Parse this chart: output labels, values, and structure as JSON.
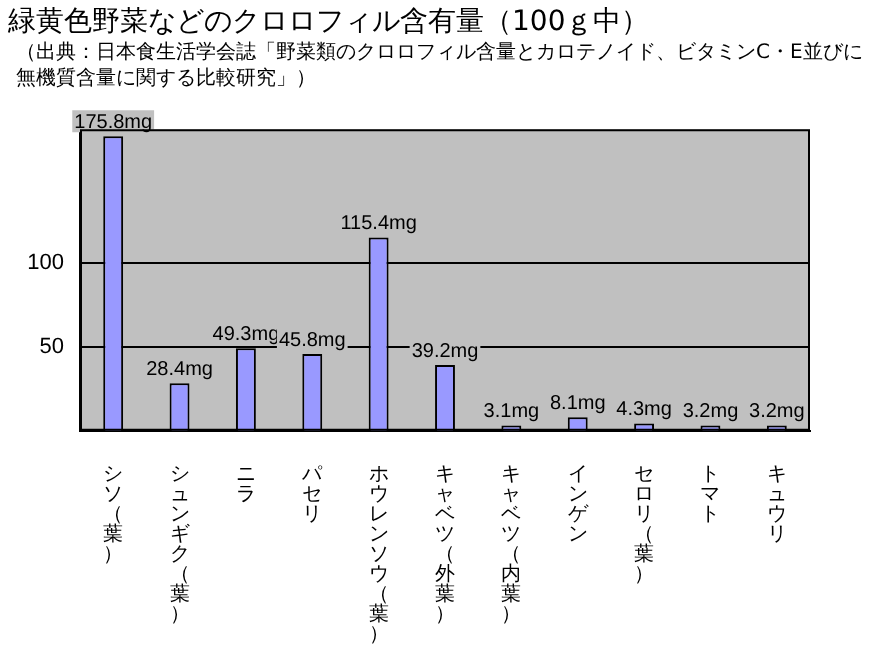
{
  "chart_data": {
    "type": "bar",
    "title": "緑黄色野菜などのクロロフィル含有量（100ｇ中）",
    "subtitle": "（出典：日本食生活学会誌「野菜類のクロロフィル含量とカロテノイド、ビタミンC・E並びに無機質含量に関する比較研究」）",
    "categories": [
      "シソ（葉）",
      "シュンギク（葉）",
      "ニラ",
      "パセリ",
      "ホウレンソウ（葉）",
      "キャベツ（外葉）",
      "キャベツ（内葉）",
      "インゲン",
      "セロリ（葉）",
      "トマト",
      "キュウリ"
    ],
    "values": [
      175.8,
      28.4,
      49.3,
      45.8,
      115.4,
      39.2,
      3.1,
      8.1,
      4.3,
      3.2,
      3.2
    ],
    "value_labels": [
      "175.8mg",
      "28.4mg",
      "49.3mg",
      "45.8mg",
      "115.4mg",
      "39.2mg",
      "3.1mg",
      "8.1mg",
      "4.3mg",
      "3.2mg",
      "3.2mg"
    ],
    "color": "#9999ff",
    "ylim": [
      0,
      180
    ],
    "yticks": [
      50,
      100
    ],
    "grid": "y",
    "legend": false
  }
}
